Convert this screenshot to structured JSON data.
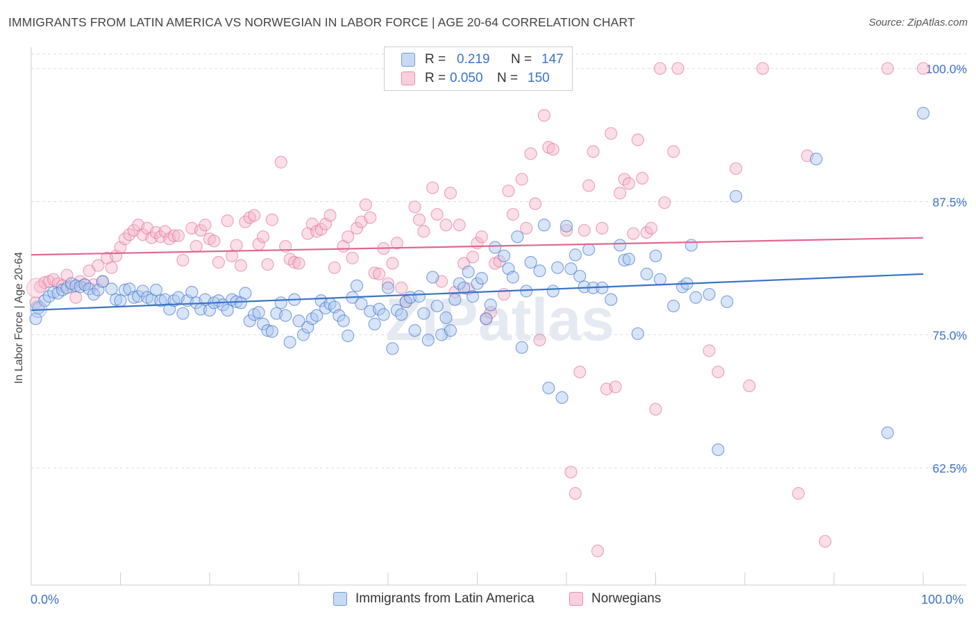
{
  "title": "IMMIGRANTS FROM LATIN AMERICA VS NORWEGIAN IN LABOR FORCE | AGE 20-64 CORRELATION CHART",
  "source": "Source: ZipAtlas.com",
  "watermark": "ZIPatlas",
  "colors": {
    "blue": "#3a72c8",
    "blue_fill": "#a9c6f0",
    "pink": "#e0678f",
    "pink_fill": "#f5b6cb",
    "grid": "#dddddd"
  },
  "legend": {
    "rows": [
      {
        "r_label": "R =",
        "r_value": "0.219",
        "n_label": "N =",
        "n_value": "147"
      },
      {
        "r_label": "R =",
        "r_value": "0.050",
        "n_label": "N =",
        "n_value": "150"
      }
    ]
  },
  "bottom_legend": {
    "blue": "Immigrants from Latin America",
    "pink": "Norwegians"
  },
  "chart_data": {
    "type": "scatter",
    "title": "IMMIGRANTS FROM LATIN AMERICA VS NORWEGIAN IN LABOR FORCE | AGE 20-64 CORRELATION CHART",
    "xlabel": "",
    "ylabel": "In Labor Force | Age 20-64",
    "xlim": [
      0,
      100
    ],
    "ylim": [
      51.5,
      102
    ],
    "x_tick_labels": [
      "0.0%",
      "100.0%"
    ],
    "y_ticks": [
      62.5,
      75.0,
      87.5,
      100.0
    ],
    "y_tick_labels": [
      "62.5%",
      "75.0%",
      "87.5%",
      "100.0%"
    ],
    "grid": true,
    "legend_position": "top-center",
    "series": [
      {
        "name": "Immigrants from Latin America",
        "color": "#3a72c8",
        "R": 0.219,
        "N": 147,
        "trend": [
          [
            0,
            77.3
          ],
          [
            100,
            80.7
          ]
        ],
        "points": [
          [
            0.5,
            76.5
          ],
          [
            0.8,
            77.5
          ],
          [
            1.5,
            78.2
          ],
          [
            2,
            78.6
          ],
          [
            2.5,
            79
          ],
          [
            3,
            78.9
          ],
          [
            3.5,
            79.2
          ],
          [
            4,
            79.4
          ],
          [
            4.5,
            79.8
          ],
          [
            5,
            79.6
          ],
          [
            5.5,
            79.5
          ],
          [
            6,
            79.7
          ],
          [
            6.5,
            79.3
          ],
          [
            7,
            78.8
          ],
          [
            7.5,
            79.2
          ],
          [
            8,
            80
          ],
          [
            9,
            79.3
          ],
          [
            9.5,
            78.3
          ],
          [
            10,
            78.2
          ],
          [
            10.5,
            79.2
          ],
          [
            11,
            79.3
          ],
          [
            11.5,
            78.5
          ],
          [
            12,
            78.6
          ],
          [
            12.5,
            79.1
          ],
          [
            13,
            78.5
          ],
          [
            13.5,
            78.3
          ],
          [
            14,
            79.2
          ],
          [
            14.5,
            78.2
          ],
          [
            15,
            78.3
          ],
          [
            15.5,
            77.4
          ],
          [
            16,
            78.2
          ],
          [
            16.5,
            78.5
          ],
          [
            17,
            77
          ],
          [
            17.5,
            78.2
          ],
          [
            18,
            79
          ],
          [
            18.5,
            78
          ],
          [
            19,
            77.4
          ],
          [
            19.5,
            78.3
          ],
          [
            20,
            77.3
          ],
          [
            20.5,
            78
          ],
          [
            21,
            78.2
          ],
          [
            21.5,
            77.8
          ],
          [
            22,
            77.3
          ],
          [
            22.5,
            78.3
          ],
          [
            23,
            78.1
          ],
          [
            23.5,
            78
          ],
          [
            24,
            78.9
          ],
          [
            24.5,
            76.3
          ],
          [
            25,
            76.9
          ],
          [
            25.5,
            77.1
          ],
          [
            26,
            76
          ],
          [
            26.5,
            75.4
          ],
          [
            27,
            75.3
          ],
          [
            27.5,
            77
          ],
          [
            28,
            78
          ],
          [
            28.5,
            76.8
          ],
          [
            29,
            74.3
          ],
          [
            29.5,
            78.3
          ],
          [
            30,
            76.3
          ],
          [
            30.5,
            75
          ],
          [
            31,
            75.7
          ],
          [
            31.5,
            76.5
          ],
          [
            32,
            76.8
          ],
          [
            32.5,
            78.2
          ],
          [
            33,
            77.5
          ],
          [
            33.5,
            77.9
          ],
          [
            34,
            77.6
          ],
          [
            34.5,
            76.8
          ],
          [
            35,
            76.3
          ],
          [
            35.5,
            74.9
          ],
          [
            36,
            78.5
          ],
          [
            36.5,
            79.6
          ],
          [
            37,
            77.9
          ],
          [
            38,
            77.2
          ],
          [
            38.5,
            76
          ],
          [
            39,
            77.4
          ],
          [
            39.5,
            76.9
          ],
          [
            40,
            79.4
          ],
          [
            40.5,
            73.7
          ],
          [
            41,
            77.3
          ],
          [
            41.5,
            76.9
          ],
          [
            42,
            78.1
          ],
          [
            42.5,
            78.5
          ],
          [
            43,
            75.4
          ],
          [
            43.5,
            78.6
          ],
          [
            44,
            77
          ],
          [
            44.5,
            74.5
          ],
          [
            45,
            80.4
          ],
          [
            45.5,
            77.7
          ],
          [
            46,
            75
          ],
          [
            46.5,
            76.6
          ],
          [
            47,
            75.4
          ],
          [
            47.5,
            78.3
          ],
          [
            48,
            79.8
          ],
          [
            48.5,
            79.4
          ],
          [
            49,
            80.9
          ],
          [
            49.5,
            78.6
          ],
          [
            50,
            79.8
          ],
          [
            50.5,
            80.3
          ],
          [
            51,
            76.5
          ],
          [
            51.5,
            77.8
          ],
          [
            52,
            83.2
          ],
          [
            53,
            82.4
          ],
          [
            53.5,
            81.2
          ],
          [
            54,
            80.4
          ],
          [
            54.5,
            84.2
          ],
          [
            55,
            73.8
          ],
          [
            55.5,
            79.1
          ],
          [
            56,
            81.8
          ],
          [
            57,
            81
          ],
          [
            57.5,
            85.3
          ],
          [
            58,
            70
          ],
          [
            58.5,
            79.1
          ],
          [
            59,
            81.3
          ],
          [
            59.5,
            69.1
          ],
          [
            60,
            85.2
          ],
          [
            60.5,
            81.2
          ],
          [
            61,
            82.5
          ],
          [
            61.5,
            80.5
          ],
          [
            62,
            79.5
          ],
          [
            62.5,
            83
          ],
          [
            63,
            79.4
          ],
          [
            64,
            79.4
          ],
          [
            65,
            78.3
          ],
          [
            66,
            83.4
          ],
          [
            66.5,
            82
          ],
          [
            67,
            82.1
          ],
          [
            68,
            75.1
          ],
          [
            69,
            80.7
          ],
          [
            70,
            82.4
          ],
          [
            70.5,
            80.2
          ],
          [
            72,
            77.7
          ],
          [
            73,
            79.5
          ],
          [
            73.5,
            79.8
          ],
          [
            74,
            83.4
          ],
          [
            74.5,
            78.5
          ],
          [
            76,
            78.8
          ],
          [
            77,
            64.2
          ],
          [
            78,
            78.1
          ],
          [
            79,
            88
          ],
          [
            88,
            91.5
          ],
          [
            96,
            65.8
          ],
          [
            100,
            95.8
          ]
        ]
      },
      {
        "name": "Norwegians",
        "color": "#e0678f",
        "R": 0.05,
        "N": 150,
        "trend": [
          [
            0,
            82.5
          ],
          [
            100,
            84.1
          ]
        ],
        "points": [
          [
            0.5,
            78
          ],
          [
            1,
            79.5
          ],
          [
            1.5,
            79.9
          ],
          [
            2,
            80
          ],
          [
            2.5,
            80.2
          ],
          [
            3,
            79.8
          ],
          [
            3.5,
            79.6
          ],
          [
            4,
            80.6
          ],
          [
            4.5,
            79.5
          ],
          [
            5,
            78.5
          ],
          [
            5.5,
            80
          ],
          [
            6,
            79.7
          ],
          [
            6.5,
            81
          ],
          [
            7,
            79.7
          ],
          [
            7.5,
            81.5
          ],
          [
            8,
            80
          ],
          [
            8.5,
            82.2
          ],
          [
            9,
            81.3
          ],
          [
            9.5,
            82.4
          ],
          [
            10,
            83.2
          ],
          [
            10.5,
            84
          ],
          [
            11,
            84.4
          ],
          [
            11.5,
            84.8
          ],
          [
            12,
            85.3
          ],
          [
            12.5,
            84.4
          ],
          [
            13,
            85
          ],
          [
            13.5,
            84.1
          ],
          [
            14,
            84.6
          ],
          [
            14.5,
            84.2
          ],
          [
            15,
            84.7
          ],
          [
            15.5,
            84
          ],
          [
            16,
            84.3
          ],
          [
            16.5,
            84.3
          ],
          [
            17,
            82
          ],
          [
            18,
            85
          ],
          [
            18.5,
            83.3
          ],
          [
            19,
            84.8
          ],
          [
            19.5,
            85.3
          ],
          [
            20,
            84
          ],
          [
            20.5,
            83.8
          ],
          [
            21,
            81.8
          ],
          [
            22,
            85.7
          ],
          [
            22.5,
            82.4
          ],
          [
            23,
            83.4
          ],
          [
            23.5,
            81.5
          ],
          [
            24,
            85.6
          ],
          [
            24.5,
            86
          ],
          [
            25,
            86.2
          ],
          [
            25.5,
            83.5
          ],
          [
            26,
            84.2
          ],
          [
            26.5,
            81.6
          ],
          [
            27,
            85.8
          ],
          [
            28,
            91.2
          ],
          [
            28.5,
            83.3
          ],
          [
            29,
            82.1
          ],
          [
            29.5,
            81.8
          ],
          [
            30,
            81.7
          ],
          [
            31,
            84.5
          ],
          [
            31.5,
            85.4
          ],
          [
            32,
            84.7
          ],
          [
            32.5,
            84.9
          ],
          [
            33,
            85.4
          ],
          [
            33.5,
            86.2
          ],
          [
            34,
            81.3
          ],
          [
            35,
            83.3
          ],
          [
            35.5,
            84.2
          ],
          [
            36,
            82.2
          ],
          [
            36.5,
            85
          ],
          [
            37,
            85.6
          ],
          [
            37.5,
            87.2
          ],
          [
            38,
            86
          ],
          [
            38.5,
            80.8
          ],
          [
            39,
            80.7
          ],
          [
            39.5,
            83.1
          ],
          [
            40,
            79.8
          ],
          [
            40.5,
            81.7
          ],
          [
            41,
            83.6
          ],
          [
            41.5,
            79.4
          ],
          [
            42,
            78.1
          ],
          [
            43,
            87
          ],
          [
            43.5,
            85.8
          ],
          [
            44,
            84.7
          ],
          [
            45,
            88.8
          ],
          [
            45.5,
            86.3
          ],
          [
            46,
            80
          ],
          [
            46.5,
            85.3
          ],
          [
            47,
            88.3
          ],
          [
            47.5,
            79
          ],
          [
            48,
            85.3
          ],
          [
            48.5,
            81.7
          ],
          [
            49,
            79.3
          ],
          [
            49.5,
            82.3
          ],
          [
            50,
            83.6
          ],
          [
            50.5,
            84.2
          ],
          [
            51,
            76.5
          ],
          [
            51.5,
            77.1
          ],
          [
            52,
            81.7
          ],
          [
            52.5,
            81.9
          ],
          [
            53,
            78.8
          ],
          [
            53.5,
            88.5
          ],
          [
            54,
            86.3
          ],
          [
            55,
            89.6
          ],
          [
            55.5,
            85
          ],
          [
            56,
            92
          ],
          [
            56.5,
            87.3
          ],
          [
            57,
            74.5
          ],
          [
            57.5,
            95.6
          ],
          [
            58,
            92.6
          ],
          [
            58.5,
            92.4
          ],
          [
            60,
            84.8
          ],
          [
            60.5,
            62.1
          ],
          [
            61,
            60.1
          ],
          [
            61.5,
            71.5
          ],
          [
            62,
            84.8
          ],
          [
            62.5,
            89
          ],
          [
            63,
            92.2
          ],
          [
            63.5,
            54.7
          ],
          [
            64,
            85
          ],
          [
            64.5,
            69.9
          ],
          [
            65,
            93.9
          ],
          [
            65.5,
            70.1
          ],
          [
            66,
            88.3
          ],
          [
            66.5,
            89.6
          ],
          [
            67,
            89.2
          ],
          [
            67.5,
            84.5
          ],
          [
            68,
            93.3
          ],
          [
            68.5,
            89.7
          ],
          [
            69,
            84.6
          ],
          [
            69.5,
            85
          ],
          [
            70,
            68
          ],
          [
            70.5,
            100
          ],
          [
            71,
            87.4
          ],
          [
            72,
            92.2
          ],
          [
            72.5,
            100
          ],
          [
            76,
            73.5
          ],
          [
            77,
            71.5
          ],
          [
            79,
            90.6
          ],
          [
            80.5,
            70.2
          ],
          [
            82,
            100
          ],
          [
            86,
            60.1
          ],
          [
            87,
            91.8
          ],
          [
            89,
            55.6
          ],
          [
            96,
            100
          ],
          [
            100,
            100
          ]
        ]
      }
    ]
  }
}
